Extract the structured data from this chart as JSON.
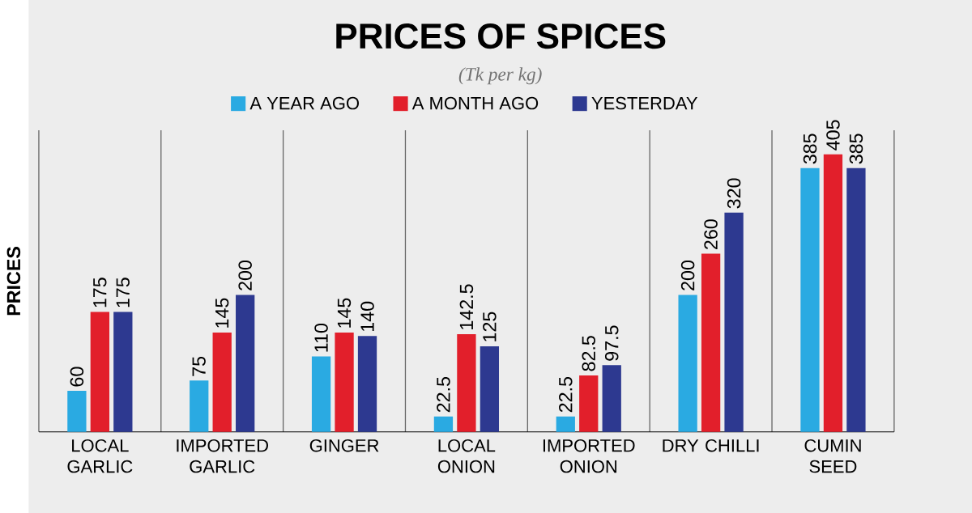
{
  "chart_data": {
    "type": "bar",
    "title": "PRICES OF SPICES",
    "subtitle": "(Tk per kg)",
    "ylabel": "PRICES",
    "categories": [
      "LOCAL GARLIC",
      "IMPORTED GARLIC",
      "GINGER",
      "LOCAL ONION",
      "IMPORTED ONION",
      "DRY CHILLI",
      "CUMIN SEED"
    ],
    "series": [
      {
        "name": "A YEAR AGO",
        "color": "#2aaae2",
        "values": [
          60,
          75,
          110,
          22.5,
          22.5,
          200,
          385
        ]
      },
      {
        "name": "A MONTH AGO",
        "color": "#e21f2b",
        "values": [
          175,
          145,
          145,
          142.5,
          82.5,
          260,
          405
        ]
      },
      {
        "name": "YESTERDAY",
        "color": "#2d3990",
        "values": [
          175,
          200,
          140,
          125,
          97.5,
          320,
          385
        ]
      }
    ],
    "ylim": [
      0,
      440
    ],
    "data_labels": true,
    "grid": "x",
    "legend": "top"
  }
}
